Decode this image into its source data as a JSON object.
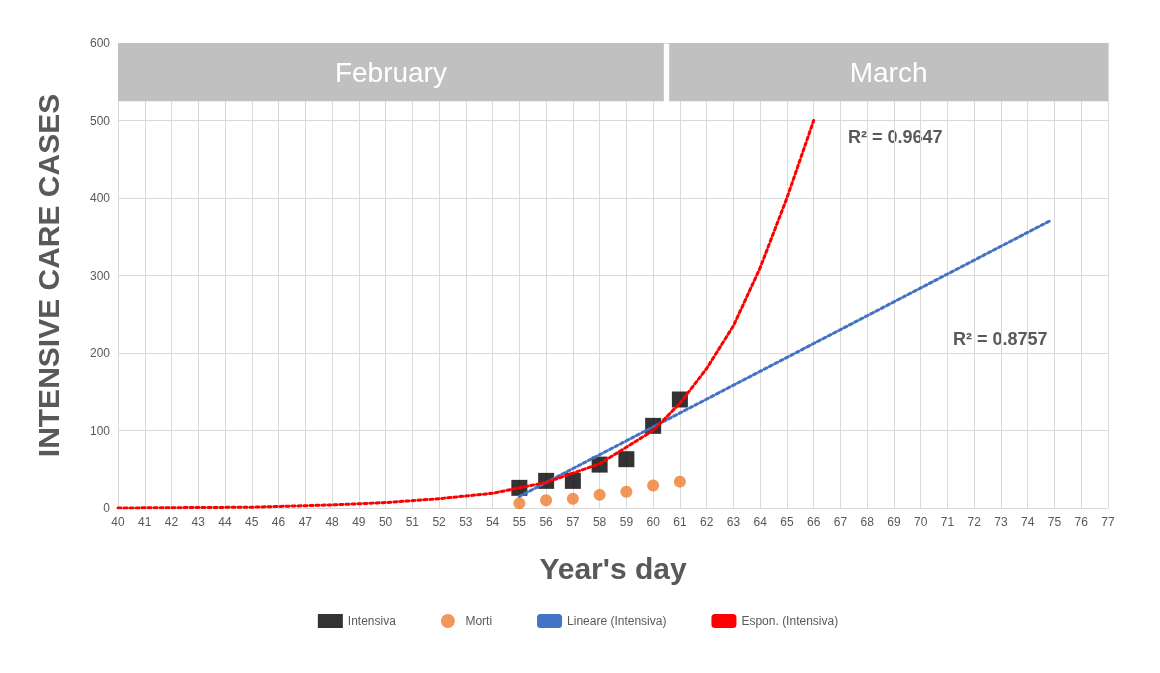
{
  "chart_data": {
    "type": "scatter",
    "xlabel": "Year's day",
    "ylabel": "INTENSIVE CARE CASES",
    "xlim": [
      40,
      77
    ],
    "xticks": [
      40,
      41,
      42,
      43,
      44,
      45,
      46,
      47,
      48,
      49,
      50,
      51,
      52,
      53,
      54,
      55,
      56,
      57,
      58,
      59,
      60,
      61,
      62,
      63,
      64,
      65,
      66,
      67,
      68,
      69,
      70,
      71,
      72,
      73,
      74,
      75,
      76,
      77
    ],
    "ylim": [
      0,
      600
    ],
    "yticks": [
      0,
      100,
      200,
      300,
      400,
      500,
      600
    ],
    "grid": true,
    "legend": "bottom",
    "series": [
      {
        "name": "Intensiva",
        "marker": "square",
        "color": "#000000",
        "x": [
          55,
          56,
          57,
          58,
          59,
          60,
          61
        ],
        "values": [
          26,
          35,
          35,
          56,
          63,
          106,
          140
        ]
      },
      {
        "name": "Morti",
        "marker": "circle",
        "color": "#ed7d31",
        "x": [
          55,
          56,
          57,
          58,
          59,
          60,
          61
        ],
        "values": [
          6,
          10,
          12,
          17,
          21,
          29,
          34
        ]
      },
      {
        "name": "Lineare (Intensiva)",
        "type": "line",
        "line_style": "dotted",
        "color": "#4472c4",
        "x": [
          55,
          74.8
        ],
        "values": [
          15,
          370
        ]
      },
      {
        "name": "Espon. (Intensiva)",
        "type": "line",
        "line_style": "dotted",
        "color": "#ff0000",
        "x": [
          40,
          45,
          48,
          50,
          52,
          54,
          56,
          58,
          60,
          61,
          62,
          63,
          64,
          65,
          66
        ],
        "values": [
          0,
          1,
          4,
          7,
          12,
          19,
          33,
          57,
          100,
          135,
          180,
          235,
          310,
          400,
          500
        ]
      }
    ],
    "bands": [
      {
        "axis": "x",
        "from": 40,
        "to": 60.4,
        "label": "February",
        "color": "#c0c0c0"
      },
      {
        "axis": "x",
        "from": 60.6,
        "to": 77,
        "label": "March",
        "color": "#c0c0c0"
      }
    ],
    "annotations": [
      "R² = 0.9647",
      "R² = 0.8757"
    ]
  }
}
